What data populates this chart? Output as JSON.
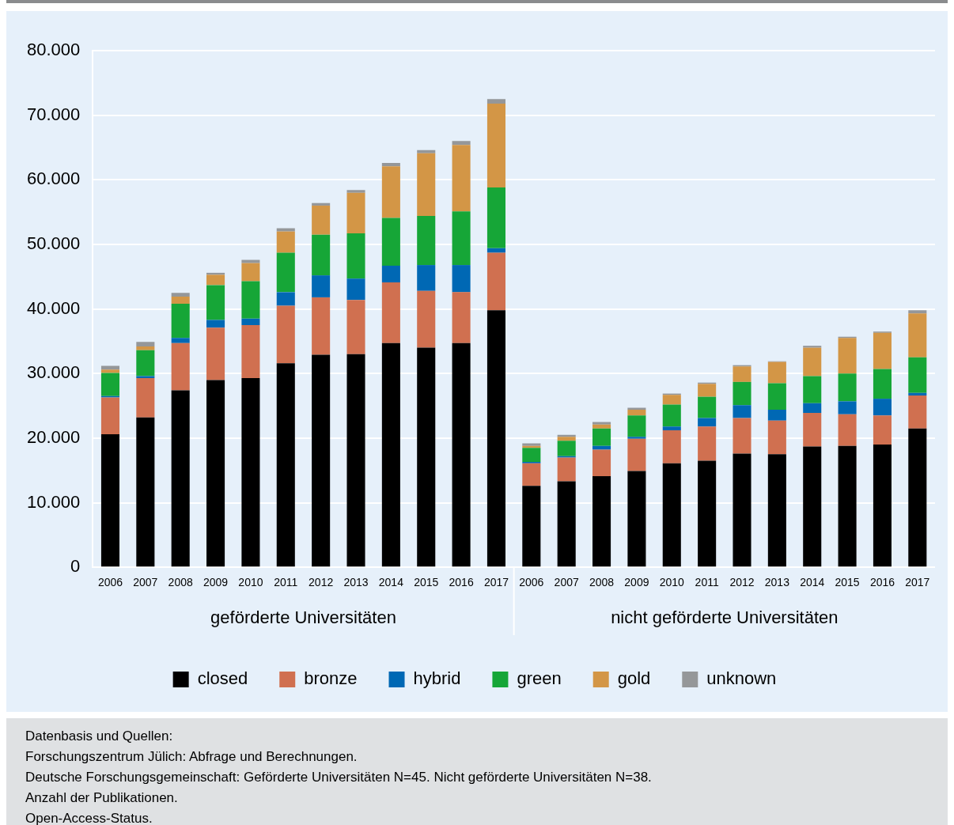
{
  "chart_data": {
    "type": "bar",
    "stacked": true,
    "categories": [
      "2006",
      "2007",
      "2008",
      "2009",
      "2010",
      "2011",
      "2012",
      "2013",
      "2014",
      "2015",
      "2016",
      "2017",
      "2006",
      "2007",
      "2008",
      "2009",
      "2010",
      "2011",
      "2012",
      "2013",
      "2014",
      "2015",
      "2016",
      "2017"
    ],
    "series": [
      {
        "name": "closed",
        "color": "#000000",
        "values": [
          20600,
          23200,
          27400,
          29000,
          29300,
          31600,
          32900,
          33000,
          34700,
          34000,
          34700,
          39800,
          12600,
          13300,
          14100,
          14900,
          16100,
          16500,
          17600,
          17500,
          18700,
          18800,
          19000,
          21500
        ]
      },
      {
        "name": "bronze",
        "color": "#d07050",
        "values": [
          5700,
          6100,
          7300,
          8100,
          8200,
          8900,
          8900,
          8400,
          9400,
          8800,
          7900,
          8900,
          3500,
          3700,
          4100,
          5000,
          5100,
          5300,
          5500,
          5200,
          5200,
          4900,
          4500,
          5100
        ]
      },
      {
        "name": "hybrid",
        "color": "#0068b4",
        "values": [
          200,
          300,
          800,
          1200,
          1000,
          2100,
          3400,
          3300,
          2600,
          4000,
          4200,
          700,
          200,
          200,
          600,
          300,
          600,
          1300,
          2000,
          1700,
          1500,
          2000,
          2600,
          400
        ]
      },
      {
        "name": "green",
        "color": "#16a637",
        "values": [
          3600,
          4000,
          5300,
          5400,
          5800,
          6100,
          6300,
          7000,
          7400,
          7600,
          8300,
          9400,
          2200,
          2400,
          2700,
          3300,
          3400,
          3300,
          3600,
          4100,
          4200,
          4300,
          4600,
          5500
        ]
      },
      {
        "name": "gold",
        "color": "#d39646",
        "values": [
          500,
          600,
          1100,
          1600,
          2800,
          3300,
          4500,
          6300,
          8000,
          9700,
          10300,
          13000,
          300,
          600,
          600,
          900,
          1500,
          2000,
          2400,
          3300,
          4400,
          5500,
          5600,
          6800
        ]
      },
      {
        "name": "unknown",
        "color": "#959799",
        "values": [
          600,
          700,
          600,
          300,
          500,
          500,
          400,
          400,
          500,
          500,
          600,
          700,
          400,
          300,
          400,
          300,
          200,
          200,
          200,
          100,
          300,
          200,
          200,
          500
        ]
      }
    ],
    "ylim": [
      0,
      80000
    ],
    "yticks": [
      0,
      {
        "value": 10000,
        "label": "10.000"
      },
      {
        "value": 20000,
        "label": "20.000"
      },
      {
        "value": 30000,
        "label": "30.000"
      },
      {
        "value": 40000,
        "label": "40.000"
      },
      {
        "value": 50000,
        "label": "50.000"
      },
      {
        "value": 60000,
        "label": "60.000"
      },
      {
        "value": 70000,
        "label": "70.000"
      },
      {
        "value": 80000,
        "label": "80.000"
      }
    ],
    "grid": "y",
    "legend": "bottom",
    "annotations": [
      "geförderte Universitäten",
      "nicht geförderte Universitäten",
      "Datenbasis und Quellen:",
      "Forschungszentrum Jülich: Abfrage und Berechnungen.",
      "Deutsche Forschungsgemeinschaft: Geförderte Universitäten N=45. Nicht geförderte Universitäten N=38.",
      "Anzahl der Publikationen.",
      "Open-Access-Status."
    ]
  }
}
